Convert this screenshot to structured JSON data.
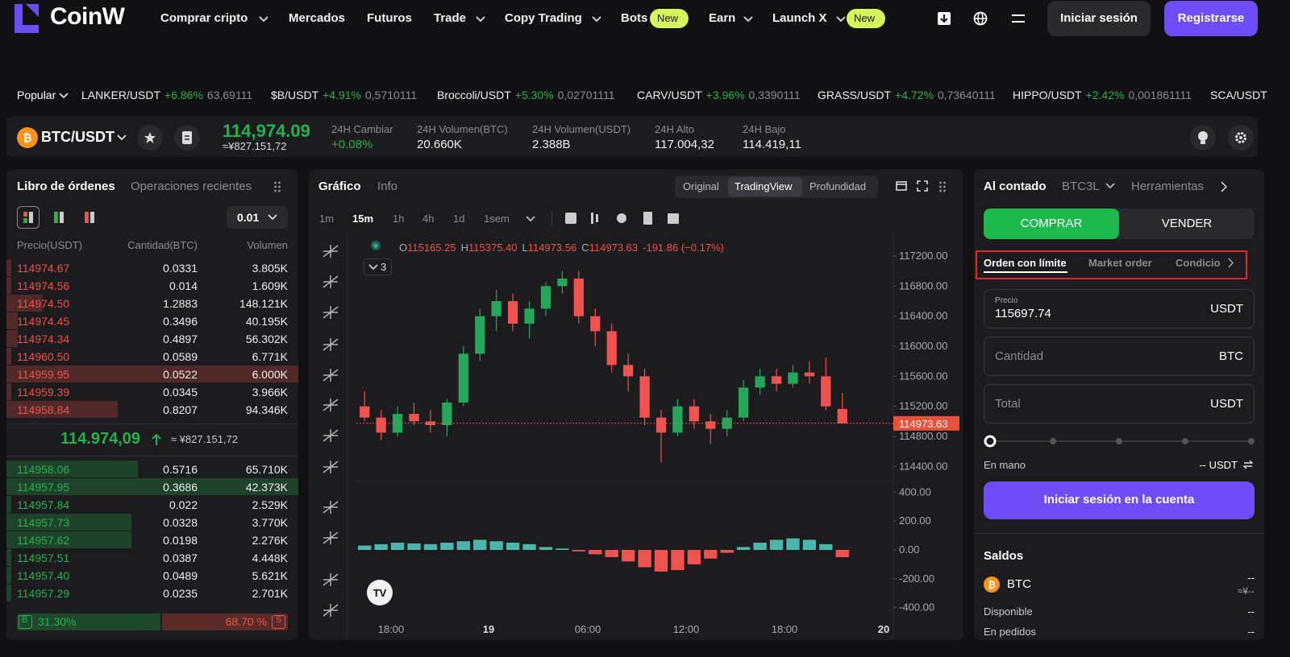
{
  "header": {
    "logo": "CoinW",
    "nav": [
      "Comprar cripto",
      "Mercados",
      "Futuros",
      "Trade",
      "Copy Trading",
      "Bots",
      "Earn",
      "Launch X"
    ],
    "badge_bots": "New",
    "badge_launch": "New",
    "login": "Iniciar sesión",
    "register": "Registrarse"
  },
  "ticker": {
    "filter": "Popular",
    "items": [
      {
        "pair": "LANKER/USDT",
        "change": "+6.86%",
        "price": "63,69111"
      },
      {
        "pair": "$B/USDT",
        "change": "+4.91%",
        "price": "0,5710111"
      },
      {
        "pair": "Broccoli/USDT",
        "change": "+5.30%",
        "price": "0,02701111"
      },
      {
        "pair": "CARV/USDT",
        "change": "+3.96%",
        "price": "0,3390111"
      },
      {
        "pair": "GRASS/USDT",
        "change": "+4.72%",
        "price": "0,73640111"
      },
      {
        "pair": "HIPPO/USDT",
        "change": "+2.42%",
        "price": "0,001861111"
      },
      {
        "pair": "SCA/USDT"
      }
    ]
  },
  "pair_bar": {
    "symbol": "BTC/USDT",
    "price": "114,974.09",
    "price_cny": "≈¥827.151,72",
    "stats": [
      {
        "label": "24H Cambiar",
        "value": "+0.08%"
      },
      {
        "label": "24H Volumen(BTC)",
        "value": "20.660K"
      },
      {
        "label": "24H Volumen(USDT)",
        "value": "2.388B"
      },
      {
        "label": "24H Alto",
        "value": "117.004,32"
      },
      {
        "label": "24H Bajo",
        "value": "114.419,11"
      }
    ]
  },
  "order_book": {
    "tabs": [
      "Libro de órdenes",
      "Operaciones recientes"
    ],
    "step": "0.01",
    "columns": [
      "Precio(USDT)",
      "Cantidad(BTC)",
      "Volumen"
    ],
    "asks": [
      [
        "114974.67",
        "0.0331",
        "3.805K"
      ],
      [
        "114974.56",
        "0.014",
        "1.609K"
      ],
      [
        "114974.50",
        "1.2883",
        "148.121K"
      ],
      [
        "114974.45",
        "0.3496",
        "40.195K"
      ],
      [
        "114974.34",
        "0.4897",
        "56.302K"
      ],
      [
        "114960.50",
        "0.0589",
        "6.771K"
      ],
      [
        "114959.95",
        "0.0522",
        "6.000K"
      ],
      [
        "114959.39",
        "0.0345",
        "3.966K"
      ],
      [
        "114958.84",
        "0.8207",
        "94.346K"
      ]
    ],
    "mid_price": "114.974,09",
    "mid_cny": "≈ ¥827.151,72",
    "bids": [
      [
        "114958.06",
        "0.5716",
        "65.710K"
      ],
      [
        "114957.95",
        "0.3686",
        "42.373K"
      ],
      [
        "114957.84",
        "0.022",
        "2.529K"
      ],
      [
        "114957.73",
        "0.0328",
        "3.770K"
      ],
      [
        "114957.62",
        "0.0198",
        "2.276K"
      ],
      [
        "114957.51",
        "0.0387",
        "4.448K"
      ],
      [
        "114957.40",
        "0.0489",
        "5.621K"
      ],
      [
        "114957.29",
        "0.0235",
        "2.701K"
      ]
    ],
    "buy_label": "B",
    "buy_ratio": "31.30%",
    "sell_ratio": "68.70 %",
    "sell_label": "S"
  },
  "chart_panel": {
    "tabs": [
      "Gráfico",
      "Info"
    ],
    "views": [
      "Original",
      "TradingView",
      "Profundidad"
    ],
    "intervals": [
      "1m",
      "15m",
      "1h",
      "4h",
      "1d",
      "1sem"
    ],
    "legend": [
      {
        "key": "O",
        "value": "115165.25"
      },
      {
        "key": "H",
        "value": "115375.40"
      },
      {
        "key": "L",
        "value": "114973.56"
      },
      {
        "key": "C",
        "value": "114973.63"
      }
    ],
    "legend_change": "-191.86 (−0.17%)",
    "indicator_count": "3",
    "time_labels": [
      "18:00",
      "19",
      "06:00",
      "12:00",
      "18:00",
      "20"
    ]
  },
  "chart_data": {
    "type": "candlestick",
    "up_color": "#26a65b",
    "down_color": "#ef5350",
    "ohlc": [
      [
        115200,
        115400,
        115000,
        115050
      ],
      [
        115050,
        115150,
        114750,
        114850
      ],
      [
        114850,
        115200,
        114800,
        115100
      ],
      [
        115100,
        115250,
        114950,
        115000
      ],
      [
        115000,
        115150,
        114850,
        114950
      ],
      [
        114950,
        115300,
        114800,
        115250
      ],
      [
        115250,
        116000,
        115200,
        115900
      ],
      [
        115900,
        116500,
        115800,
        116400
      ],
      [
        116400,
        116750,
        116200,
        116600
      ],
      [
        116600,
        116700,
        116200,
        116300
      ],
      [
        116300,
        116600,
        116100,
        116500
      ],
      [
        116500,
        116850,
        116400,
        116800
      ],
      [
        116800,
        117000,
        116700,
        116900
      ],
      [
        116900,
        117000,
        116300,
        116400
      ],
      [
        116400,
        116500,
        116000,
        116200
      ],
      [
        116200,
        116300,
        115650,
        115750
      ],
      [
        115750,
        115900,
        115400,
        115600
      ],
      [
        115600,
        115700,
        114950,
        115050
      ],
      [
        115050,
        115150,
        114450,
        114850
      ],
      [
        114850,
        115300,
        114800,
        115200
      ],
      [
        115200,
        115300,
        114900,
        115000
      ],
      [
        115000,
        115100,
        114700,
        114900
      ],
      [
        114900,
        115150,
        114800,
        115050
      ],
      [
        115050,
        115550,
        115000,
        115450
      ],
      [
        115450,
        115700,
        115350,
        115600
      ],
      [
        115600,
        115700,
        115400,
        115500
      ],
      [
        115500,
        115750,
        115450,
        115650
      ],
      [
        115650,
        115800,
        115500,
        115600
      ],
      [
        115600,
        115850,
        115150,
        115200
      ],
      [
        115165.25,
        115375.4,
        114973.56,
        114973.63
      ]
    ],
    "ylim": [
      114200,
      117500
    ],
    "yticks": [
      {
        "value": 117200,
        "label": "117200.00"
      },
      {
        "value": 116800,
        "label": "116800.00"
      },
      {
        "value": 116400,
        "label": "116400.00"
      },
      {
        "value": 116000,
        "label": "116000.00"
      },
      {
        "value": 115600,
        "label": "115600.00"
      },
      {
        "value": 115200,
        "label": "115200.00"
      },
      {
        "value": 114800,
        "label": "114800.00"
      },
      {
        "value": 114400,
        "label": "114400.00"
      }
    ],
    "last_price": 114973.63,
    "indicator": {
      "type": "bar",
      "values": [
        30,
        40,
        50,
        45,
        40,
        50,
        60,
        70,
        60,
        50,
        40,
        20,
        10,
        -10,
        -30,
        -50,
        -80,
        -120,
        -150,
        -140,
        -100,
        -60,
        -20,
        20,
        50,
        70,
        80,
        70,
        40,
        -50
      ],
      "ylim": [
        -480,
        480
      ],
      "yticks": [
        {
          "value": 400,
          "label": "400.00"
        },
        {
          "value": 200,
          "label": "200.00"
        },
        {
          "value": 0,
          "label": "0.00"
        },
        {
          "value": -200,
          "label": "-200.00"
        },
        {
          "value": -400,
          "label": "-400.00"
        }
      ]
    }
  },
  "trade_panel": {
    "tabs": [
      "Al contado",
      "BTC3L",
      "Herramientas"
    ],
    "buy": "COMPRAR",
    "sell": "VENDER",
    "order_types": [
      "Orden con límite",
      "Market order",
      "Condicio"
    ],
    "price_label": "Precio",
    "price": "115697.74",
    "price_unit": "USDT",
    "amount_label": "Cantidad",
    "amount_unit": "BTC",
    "total_label": "Total",
    "total_unit": "USDT",
    "available_label": "En mano",
    "available_value": "-- USDT",
    "login": "Iniciar sesión en la cuenta",
    "balances_title": "Saldos",
    "asset": "BTC",
    "asset_value": "--",
    "asset_value_cny": "≈¥--",
    "rows": [
      {
        "label": "Disponible",
        "value": "--"
      },
      {
        "label": "En pedidos",
        "value": "--"
      }
    ]
  }
}
